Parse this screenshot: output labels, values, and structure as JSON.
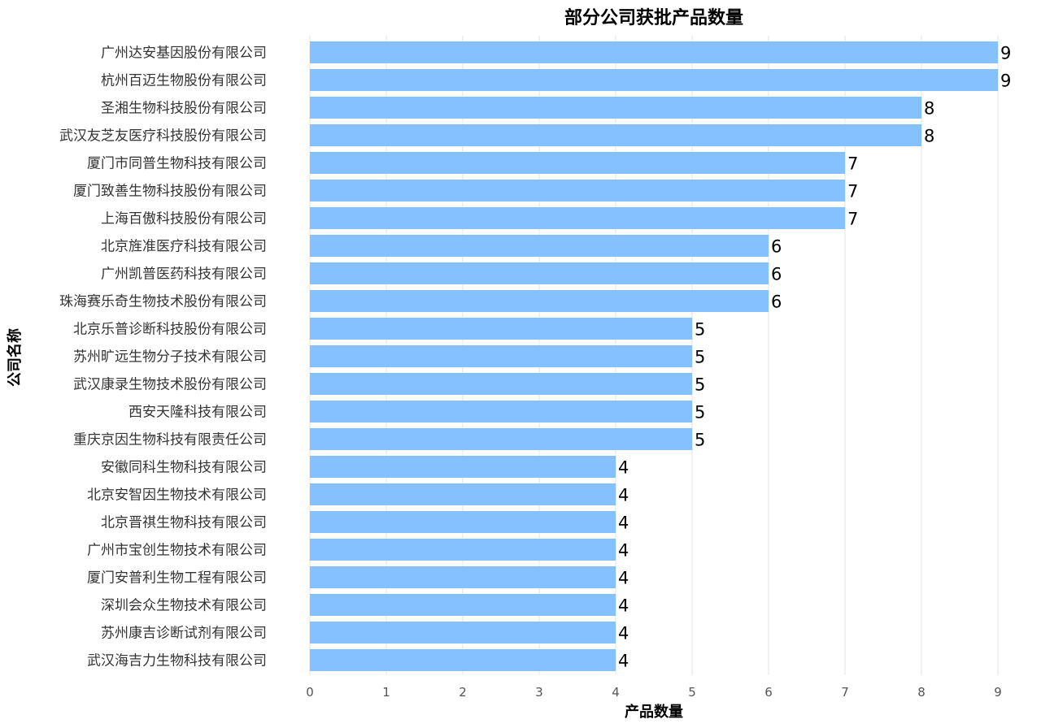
{
  "chart_data": {
    "type": "bar",
    "orientation": "horizontal",
    "title": "部分公司获批产品数量",
    "xlabel": "产品数量",
    "ylabel": "公司名称",
    "categories": [
      "广州达安基因股份有限公司",
      "杭州百迈生物股份有限公司",
      "圣湘生物科技股份有限公司",
      "武汉友芝友医疗科技股份有限公司",
      "厦门市同普生物科技有限公司",
      "厦门致善生物科技股份有限公司",
      "上海百傲科技股份有限公司",
      "北京旌准医疗科技有限公司",
      "广州凯普医药科技有限公司",
      "珠海赛乐奇生物技术股份有限公司",
      "北京乐普诊断科技股份有限公司",
      "苏州旷远生物分子技术有限公司",
      "武汉康录生物技术股份有限公司",
      "西安天隆科技有限公司",
      "重庆京因生物科技有限责任公司",
      "安徽同科生物科技有限公司",
      "北京安智因生物技术有限公司",
      "北京晋祺生物科技有限公司",
      "广州市宝创生物技术有限公司",
      "厦门安普利生物工程有限公司",
      "深圳会众生物技术有限公司",
      "苏州康吉诊断试剂有限公司",
      "武汉海吉力生物科技有限公司"
    ],
    "values": [
      9,
      9,
      8,
      8,
      7,
      7,
      7,
      6,
      6,
      6,
      5,
      5,
      5,
      5,
      5,
      4,
      4,
      4,
      4,
      4,
      4,
      4,
      4
    ],
    "xlim": [
      0,
      9
    ],
    "xticks": [
      "0",
      "1",
      "2",
      "3",
      "4",
      "5",
      "6",
      "7",
      "8",
      "9"
    ],
    "grid": "vertical",
    "bar_color": "#85c1ff",
    "data_labels": true
  }
}
